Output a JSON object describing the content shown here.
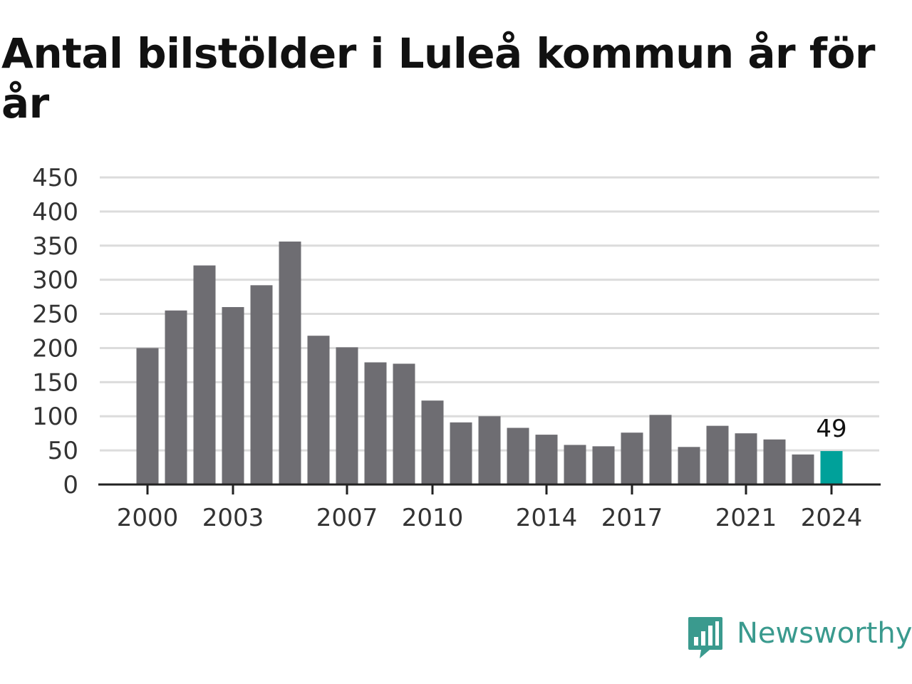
{
  "chart_data": {
    "type": "bar",
    "title": "Antal bilstölder i Luleå kommun år för år",
    "x": [
      2000,
      2001,
      2002,
      2003,
      2004,
      2005,
      2006,
      2007,
      2008,
      2009,
      2010,
      2011,
      2012,
      2013,
      2014,
      2015,
      2016,
      2017,
      2018,
      2019,
      2020,
      2021,
      2022,
      2023,
      2024
    ],
    "values": [
      200,
      255,
      321,
      260,
      292,
      356,
      218,
      201,
      179,
      177,
      123,
      91,
      100,
      83,
      73,
      58,
      56,
      76,
      102,
      55,
      86,
      75,
      66,
      44,
      49
    ],
    "x_tick_labels": [
      "2000",
      "2003",
      "2007",
      "2010",
      "2014",
      "2017",
      "2021",
      "2024"
    ],
    "y_ticks": [
      0,
      50,
      100,
      150,
      200,
      250,
      300,
      350,
      400,
      450
    ],
    "ylim": [
      0,
      450
    ],
    "grid": true,
    "bar_color": "#6e6d72",
    "highlight_color": "#00a19a",
    "highlight_x": 2024,
    "value_label": "49",
    "xlabel": "",
    "ylabel": ""
  },
  "branding": {
    "logo_text": "Newsworthy",
    "logo_icon": "newsworthy-logo-icon",
    "logo_color": "#3a9a8e"
  }
}
